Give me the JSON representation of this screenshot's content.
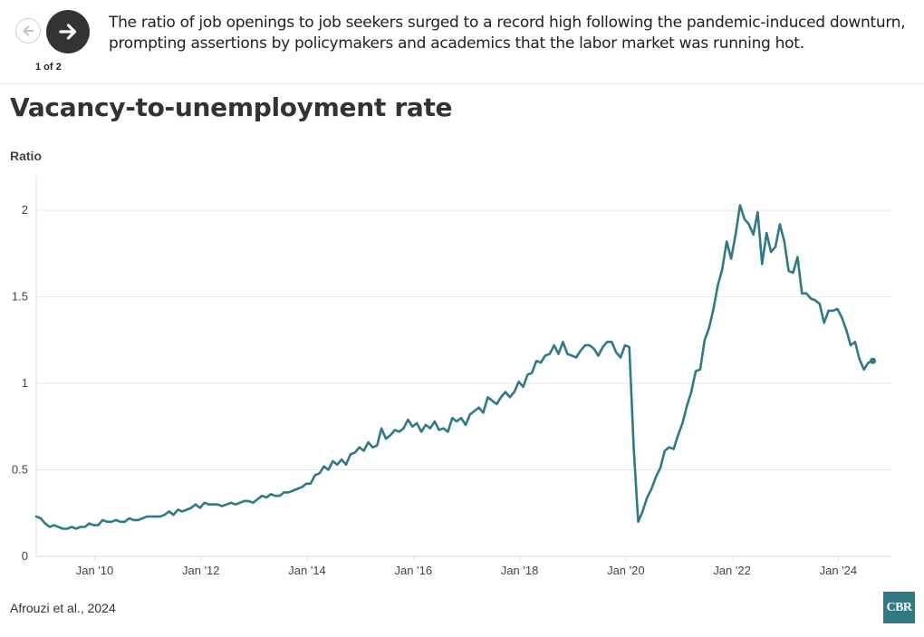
{
  "nav": {
    "prev_icon": "arrow-left-icon",
    "next_icon": "arrow-right-icon",
    "pager": "1 of 2"
  },
  "caption": "The ratio of job openings to job seekers surged to a record high following the pandemic-induced downturn, prompting assertions by policymakers and academics that the labor market was running hot.",
  "source": "Afrouzi et al., 2024",
  "logo": "CBR",
  "colors": {
    "line": "#2f7a85",
    "grid": "#e8e8e8",
    "axis": "#dddddd",
    "logo_bg": "#2f7a85"
  },
  "chart_data": {
    "type": "line",
    "title": "Vacancy-to-unemployment rate",
    "ylabel": "Ratio",
    "xlabel": "",
    "ylim": [
      0,
      2.2
    ],
    "yticks": [
      0,
      0.5,
      1,
      1.5,
      2
    ],
    "ytick_labels": [
      "0",
      "0.5",
      "1",
      "1.5",
      "2"
    ],
    "xtick_labels": [
      "Jan '10",
      "Jan '12",
      "Jan '14",
      "Jan '16",
      "Jan '18",
      "Jan '20",
      "Jan '22",
      "Jan '24"
    ],
    "xtick_years": [
      2010,
      2012,
      2014,
      2016,
      2018,
      2020,
      2022,
      2024
    ],
    "x_range": [
      2008.9,
      2025.0
    ],
    "x_start": 2008.9,
    "x_step_months": 1,
    "series": [
      {
        "name": "Vacancy-to-unemployment rate",
        "values": [
          0.23,
          0.22,
          0.19,
          0.17,
          0.18,
          0.17,
          0.16,
          0.16,
          0.17,
          0.16,
          0.17,
          0.17,
          0.19,
          0.18,
          0.18,
          0.21,
          0.2,
          0.2,
          0.21,
          0.2,
          0.2,
          0.22,
          0.21,
          0.21,
          0.22,
          0.23,
          0.23,
          0.23,
          0.23,
          0.24,
          0.26,
          0.24,
          0.27,
          0.26,
          0.27,
          0.28,
          0.3,
          0.28,
          0.31,
          0.3,
          0.3,
          0.3,
          0.29,
          0.3,
          0.31,
          0.3,
          0.31,
          0.32,
          0.32,
          0.31,
          0.33,
          0.35,
          0.34,
          0.36,
          0.35,
          0.35,
          0.37,
          0.37,
          0.38,
          0.39,
          0.4,
          0.42,
          0.42,
          0.47,
          0.48,
          0.52,
          0.5,
          0.55,
          0.53,
          0.56,
          0.53,
          0.59,
          0.6,
          0.63,
          0.61,
          0.66,
          0.63,
          0.64,
          0.74,
          0.68,
          0.7,
          0.73,
          0.72,
          0.74,
          0.79,
          0.75,
          0.77,
          0.72,
          0.76,
          0.74,
          0.78,
          0.73,
          0.74,
          0.72,
          0.8,
          0.78,
          0.8,
          0.76,
          0.82,
          0.84,
          0.86,
          0.83,
          0.92,
          0.9,
          0.88,
          0.92,
          0.95,
          0.92,
          0.95,
          1.01,
          0.98,
          1.05,
          1.06,
          1.13,
          1.12,
          1.16,
          1.17,
          1.22,
          1.17,
          1.24,
          1.17,
          1.16,
          1.15,
          1.19,
          1.22,
          1.22,
          1.2,
          1.16,
          1.21,
          1.24,
          1.24,
          1.18,
          1.15,
          1.22,
          1.21,
          0.62,
          0.2,
          0.26,
          0.34,
          0.39,
          0.46,
          0.51,
          0.61,
          0.63,
          0.62,
          0.7,
          0.77,
          0.87,
          0.95,
          1.07,
          1.08,
          1.25,
          1.32,
          1.43,
          1.57,
          1.66,
          1.82,
          1.72,
          1.86,
          2.03,
          1.95,
          1.92,
          1.86,
          1.99,
          1.69,
          1.87,
          1.76,
          1.79,
          1.92,
          1.82,
          1.65,
          1.64,
          1.73,
          1.52,
          1.52,
          1.49,
          1.48,
          1.46,
          1.35,
          1.42,
          1.42,
          1.43,
          1.38,
          1.31,
          1.22,
          1.24,
          1.14,
          1.08,
          1.12,
          1.13
        ]
      }
    ]
  }
}
